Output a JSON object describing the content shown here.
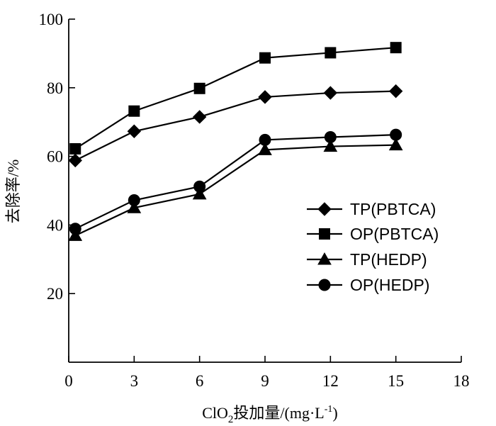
{
  "chart_data": {
    "type": "line",
    "xlabel_parts": {
      "prefix": "ClO",
      "sub": "2",
      "rest": "投加量/(mg·L",
      "sup": "-1",
      "suffix": ")"
    },
    "ylabel": "去除率/%",
    "xlim": [
      0,
      18
    ],
    "ylim": [
      0,
      100
    ],
    "x_ticks": [
      0,
      3,
      6,
      9,
      12,
      15,
      18
    ],
    "y_ticks": [
      20,
      40,
      60,
      80,
      100
    ],
    "grid": false,
    "legend_position": "right",
    "series": [
      {
        "name": "TP(PBTCA)",
        "marker": "diamond",
        "x": [
          0.3,
          3,
          6,
          9,
          12,
          15
        ],
        "y": [
          58.8,
          67.3,
          71.5,
          77.3,
          78.5,
          79.0
        ]
      },
      {
        "name": "OP(PBTCA)",
        "marker": "square",
        "x": [
          0.3,
          3,
          6,
          9,
          12,
          15
        ],
        "y": [
          62.2,
          73.2,
          79.8,
          88.7,
          90.2,
          91.7
        ]
      },
      {
        "name": "TP(HEDP)",
        "marker": "triangle",
        "x": [
          0.3,
          3,
          6,
          9,
          12,
          15
        ],
        "y": [
          36.9,
          45.0,
          49.0,
          61.9,
          62.9,
          63.3
        ]
      },
      {
        "name": "OP(HEDP)",
        "marker": "circle",
        "x": [
          0.3,
          3,
          6,
          9,
          12,
          15
        ],
        "y": [
          38.9,
          47.2,
          51.2,
          64.8,
          65.6,
          66.3
        ]
      }
    ]
  }
}
